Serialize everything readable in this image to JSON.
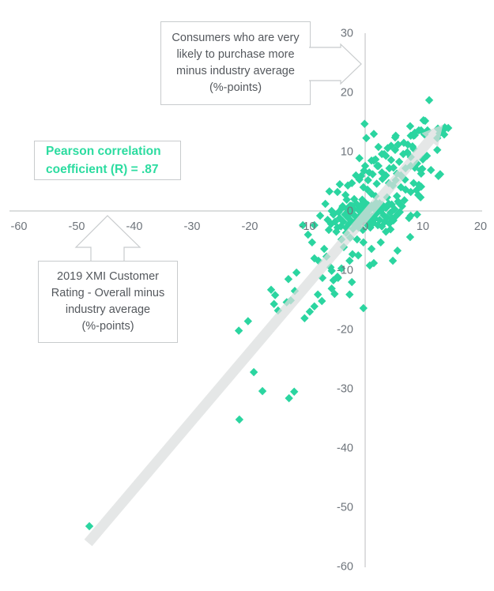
{
  "chart_data": {
    "type": "scatter",
    "title": "",
    "marker": {
      "shape": "diamond",
      "color": "#2bd5a0",
      "half_size": 5.2
    },
    "colors": {
      "axis": "#c7c9ca",
      "tick_text": "#6e747b",
      "trend": "#dcdede",
      "accent_green": "#2cdca0",
      "box_border": "#c8cbcd",
      "box_text": "#54585d"
    },
    "axes": {
      "x": {
        "min": -60,
        "max": 20,
        "ticks": [
          -60,
          -50,
          -40,
          -30,
          -20,
          -10,
          0,
          10,
          20
        ],
        "label": "2019 XMI Customer Rating - Overall minus industry average (%-points)"
      },
      "y": {
        "min": -60,
        "max": 30,
        "ticks": [
          30,
          20,
          10,
          0,
          -10,
          -20,
          -30,
          -40,
          -50,
          -60
        ],
        "label": "Consumers who are very likely to purchase more minus industry average (%-points)"
      }
    },
    "correlation": {
      "pearson_r": 0.87
    },
    "trend_line": {
      "from": [
        -48,
        -56
      ],
      "to": [
        13.5,
        14.6
      ],
      "style": "thick-gray-arrow",
      "opacity": 0.72
    },
    "points": [
      [
        -47.8,
        -53.2
      ],
      [
        -21.8,
        -35.2
      ],
      [
        -17.8,
        -30.4
      ],
      [
        -13.2,
        -31.6
      ],
      [
        -12.3,
        -30.5
      ],
      [
        -19.3,
        -27.2
      ],
      [
        -21.9,
        -20.2
      ],
      [
        -20.3,
        -18.6
      ],
      [
        -16.3,
        -13.3
      ],
      [
        -15.6,
        -14.2
      ],
      [
        -15.8,
        -15.7
      ],
      [
        -15.1,
        -16.8
      ],
      [
        -13.6,
        -15.4
      ],
      [
        -12.9,
        -15.1
      ],
      [
        -13.3,
        -11.5
      ],
      [
        -11.9,
        -10.4
      ],
      [
        -12.2,
        -13.5
      ],
      [
        -10.5,
        -18.1
      ],
      [
        -9.6,
        -17.0
      ],
      [
        -8.8,
        -16.1
      ],
      [
        -8.2,
        -14.1
      ],
      [
        -7.5,
        -15.2
      ],
      [
        -5.8,
        -13.1
      ],
      [
        -5.5,
        -11.7
      ],
      [
        -4.7,
        -11.3
      ],
      [
        -5.3,
        -14.0
      ],
      [
        -2.7,
        -14.1
      ],
      [
        -2.3,
        -12.0
      ],
      [
        -0.3,
        -16.4
      ],
      [
        11.1,
        18.7
      ],
      [
        -0.1,
        14.7
      ],
      [
        13.8,
        14.1
      ],
      [
        13.6,
        13.7
      ],
      [
        14.4,
        14.0
      ],
      [
        12.9,
        13.1
      ],
      [
        12.5,
        12.3
      ],
      [
        12.5,
        10.3
      ],
      [
        12.7,
        5.9
      ],
      [
        13.0,
        6.2
      ],
      [
        7.9,
        -0.8
      ],
      [
        9.0,
        -0.6
      ],
      [
        -10.8,
        -2.4
      ],
      [
        -9.9,
        -4.0
      ],
      [
        -8.8,
        -2.4
      ],
      [
        -9.2,
        -5.3
      ],
      [
        -8.8,
        -8.0
      ],
      [
        -8.1,
        -8.4
      ],
      [
        -7.1,
        -6.4
      ],
      [
        -6.7,
        -7.7
      ],
      [
        -6.0,
        -9.5
      ],
      [
        -7.4,
        -11.3
      ],
      [
        -5.8,
        -10.1
      ],
      [
        -4.1,
        -9.7
      ],
      [
        -4.8,
        -11.1
      ],
      [
        -4.1,
        -4.8
      ],
      [
        -4.8,
        -2.8
      ],
      [
        -3.7,
        -6.1
      ],
      [
        -3.3,
        -3.7
      ],
      [
        -2.6,
        -4.5
      ],
      [
        -2.2,
        -7.3
      ],
      [
        -2.7,
        -8.4
      ],
      [
        -1.4,
        -4.8
      ],
      [
        -1.2,
        -7.5
      ],
      [
        -0.3,
        -5.3
      ],
      [
        0.8,
        -9.2
      ],
      [
        1.5,
        -8.8
      ],
      [
        1.1,
        -6.4
      ],
      [
        2.7,
        -5.3
      ],
      [
        3.6,
        -3.5
      ],
      [
        4.4,
        -3.1
      ],
      [
        4.7,
        -1.3
      ],
      [
        7.6,
        -1.2
      ],
      [
        5.6,
        -6.7
      ],
      [
        4.8,
        -8.4
      ],
      [
        7.8,
        -4.4
      ],
      [
        -6.9,
        1.2
      ],
      [
        -7.8,
        -0.8
      ],
      [
        -5.8,
        0
      ],
      [
        -6.2,
        3.3
      ],
      [
        -4.8,
        3.2
      ],
      [
        -4.4,
        4.5
      ],
      [
        -4,
        0.5
      ],
      [
        -3.4,
        2.7
      ],
      [
        -3.2,
        1.9
      ],
      [
        -3,
        4.3
      ],
      [
        -2.3,
        4.7
      ],
      [
        -2.3,
        0.9
      ],
      [
        -1.9,
        2
      ],
      [
        -1.6,
        6
      ],
      [
        -1,
        5.3
      ],
      [
        -1,
        8.9
      ],
      [
        -0.7,
        5.9
      ],
      [
        -0.5,
        1.9
      ],
      [
        -0.3,
        4
      ],
      [
        0.1,
        1.3
      ],
      [
        0,
        7.6
      ],
      [
        0.4,
        3.6
      ],
      [
        0.7,
        6.5
      ],
      [
        1.1,
        2.9
      ],
      [
        1.1,
        8.5
      ],
      [
        1.5,
        8.5
      ],
      [
        1.8,
        2.5
      ],
      [
        1.8,
        8.7
      ],
      [
        2.1,
        7.6
      ],
      [
        2.3,
        7.6
      ],
      [
        2.5,
        1.3
      ],
      [
        2.9,
        6.5
      ],
      [
        2.9,
        9.6
      ],
      [
        3.3,
        9.6
      ],
      [
        3.6,
        6
      ],
      [
        3.6,
        9.3
      ],
      [
        3.8,
        2.3
      ],
      [
        4.1,
        1.2
      ],
      [
        4.1,
        4.7
      ],
      [
        4.2,
        7.2
      ],
      [
        4.8,
        4.3
      ],
      [
        4.9,
        7.3
      ],
      [
        5.2,
        10.3
      ],
      [
        5.2,
        12.4
      ],
      [
        5.3,
        12.7
      ],
      [
        5.5,
        2.5
      ],
      [
        5.5,
        6.3
      ],
      [
        5.9,
        1.3
      ],
      [
        6.2,
        4
      ],
      [
        6.2,
        6
      ],
      [
        6.6,
        9.6
      ],
      [
        7,
        3.6
      ],
      [
        7,
        7.2
      ],
      [
        7.3,
        9.9
      ],
      [
        7.8,
        14.3
      ],
      [
        7.9,
        3.2
      ],
      [
        7.9,
        7.6
      ],
      [
        7.9,
        9.1
      ],
      [
        7.9,
        12.7
      ],
      [
        8.2,
        10.9
      ],
      [
        8.4,
        4.7
      ],
      [
        8.4,
        10.5
      ],
      [
        8.4,
        12.7
      ],
      [
        8.6,
        7.3
      ],
      [
        8.6,
        12.8
      ],
      [
        8.6,
        13.2
      ],
      [
        8.9,
        3.5
      ],
      [
        9,
        8
      ],
      [
        9.2,
        2.7
      ],
      [
        9.3,
        13.6
      ],
      [
        9.6,
        2.3
      ],
      [
        9.6,
        6.9
      ],
      [
        9.7,
        4.1
      ],
      [
        9.7,
        6.3
      ],
      [
        9.7,
        13.6
      ],
      [
        9.9,
        7.1
      ],
      [
        10,
        8.7
      ],
      [
        10.1,
        15.3
      ],
      [
        10.3,
        12.9
      ],
      [
        10.4,
        15.2
      ],
      [
        10.7,
        9.3
      ],
      [
        10.8,
        13.6
      ],
      [
        11.4,
        6.9
      ],
      [
        12.6,
        13.9
      ],
      [
        13.7,
        12.9
      ],
      [
        9.3,
        4.4
      ],
      [
        5.3,
        5.2
      ],
      [
        6.9,
        5.3
      ],
      [
        3,
        5.4
      ],
      [
        2,
        4.6
      ],
      [
        0.5,
        5.2
      ],
      [
        -0.2,
        6.8
      ],
      [
        1.3,
        6.2
      ],
      [
        4.5,
        8.6
      ],
      [
        5.9,
        8.3
      ],
      [
        6.7,
        11.5
      ],
      [
        7.4,
        11.2
      ],
      [
        5.7,
        11.2
      ],
      [
        4.5,
        11
      ],
      [
        3.9,
        10.6
      ],
      [
        2.3,
        10.8
      ],
      [
        1.5,
        13
      ],
      [
        0.2,
        12.3
      ],
      [
        -6.5,
        -1.5
      ],
      [
        -6.3,
        -3.2
      ],
      [
        -5.9,
        -2.2
      ],
      [
        -5.5,
        -0.6
      ],
      [
        -5.2,
        -1.8
      ],
      [
        -5,
        -3.5
      ],
      [
        -4.6,
        -0.2
      ],
      [
        -4.4,
        -1.2
      ],
      [
        -4.2,
        -2.6
      ],
      [
        -3.9,
        0.8
      ],
      [
        -3.8,
        -1.8
      ],
      [
        -3.5,
        -0.6
      ],
      [
        -3.3,
        -2.8
      ],
      [
        -3.1,
        0.3
      ],
      [
        -2.9,
        -1.2
      ],
      [
        -2.8,
        -2.2
      ],
      [
        -2.6,
        0.9
      ],
      [
        -2.5,
        -0.3
      ],
      [
        -2.3,
        -1.8
      ],
      [
        -2.1,
        -3
      ],
      [
        -2,
        0.3
      ],
      [
        -1.8,
        -0.8
      ],
      [
        -1.7,
        -2.2
      ],
      [
        -1.5,
        1.2
      ],
      [
        -1.4,
        -1.5
      ],
      [
        -1.2,
        0.2
      ],
      [
        -1.1,
        -2.8
      ],
      [
        -1,
        -0.9
      ],
      [
        -0.8,
        0.8
      ],
      [
        -0.7,
        -1.9
      ],
      [
        -0.5,
        -0.4
      ],
      [
        -0.4,
        -3.2
      ],
      [
        -0.3,
        1.5
      ],
      [
        -0.1,
        -1.2
      ],
      [
        0,
        0.4
      ],
      [
        0.2,
        -2.2
      ],
      [
        0.3,
        -0.6
      ],
      [
        0.5,
        1
      ],
      [
        0.6,
        -1.6
      ],
      [
        0.8,
        0.2
      ],
      [
        0.9,
        -2.8
      ],
      [
        1.1,
        0.9
      ],
      [
        1.2,
        -0.9
      ],
      [
        1.4,
        -2
      ],
      [
        1.5,
        0.4
      ],
      [
        1.7,
        -1.3
      ],
      [
        1.9,
        1.4
      ],
      [
        2,
        -0.4
      ],
      [
        2.2,
        -2.4
      ],
      [
        2.3,
        0.7
      ],
      [
        2.5,
        -1.5
      ],
      [
        2.7,
        0.1
      ],
      [
        2.9,
        -2.6
      ],
      [
        3,
        1
      ],
      [
        3.2,
        -0.7
      ],
      [
        3.4,
        -1.8
      ],
      [
        3.6,
        0.5
      ],
      [
        3.8,
        -1.1
      ],
      [
        4,
        0.9
      ],
      [
        4.2,
        -2.1
      ],
      [
        4.4,
        -0.3
      ],
      [
        4.6,
        1.1
      ],
      [
        4.9,
        -1.6
      ],
      [
        5.1,
        0.3
      ],
      [
        5.4,
        -0.8
      ],
      [
        5.7,
        1.6
      ],
      [
        6,
        -0.2
      ],
      [
        6.4,
        0.8
      ],
      [
        6.8,
        1.8
      ]
    ]
  },
  "annotations": {
    "consumers": {
      "text": "Consumers who are very\nlikely to purchase more\nminus industry average\n(%-points)"
    },
    "pearson": {
      "text": "Pearson correlation\ncoefficient (R) = .87"
    },
    "xmi": {
      "text": "2019 XMI Customer\nRating - Overall minus\nindustry average\n(%-points)"
    }
  }
}
